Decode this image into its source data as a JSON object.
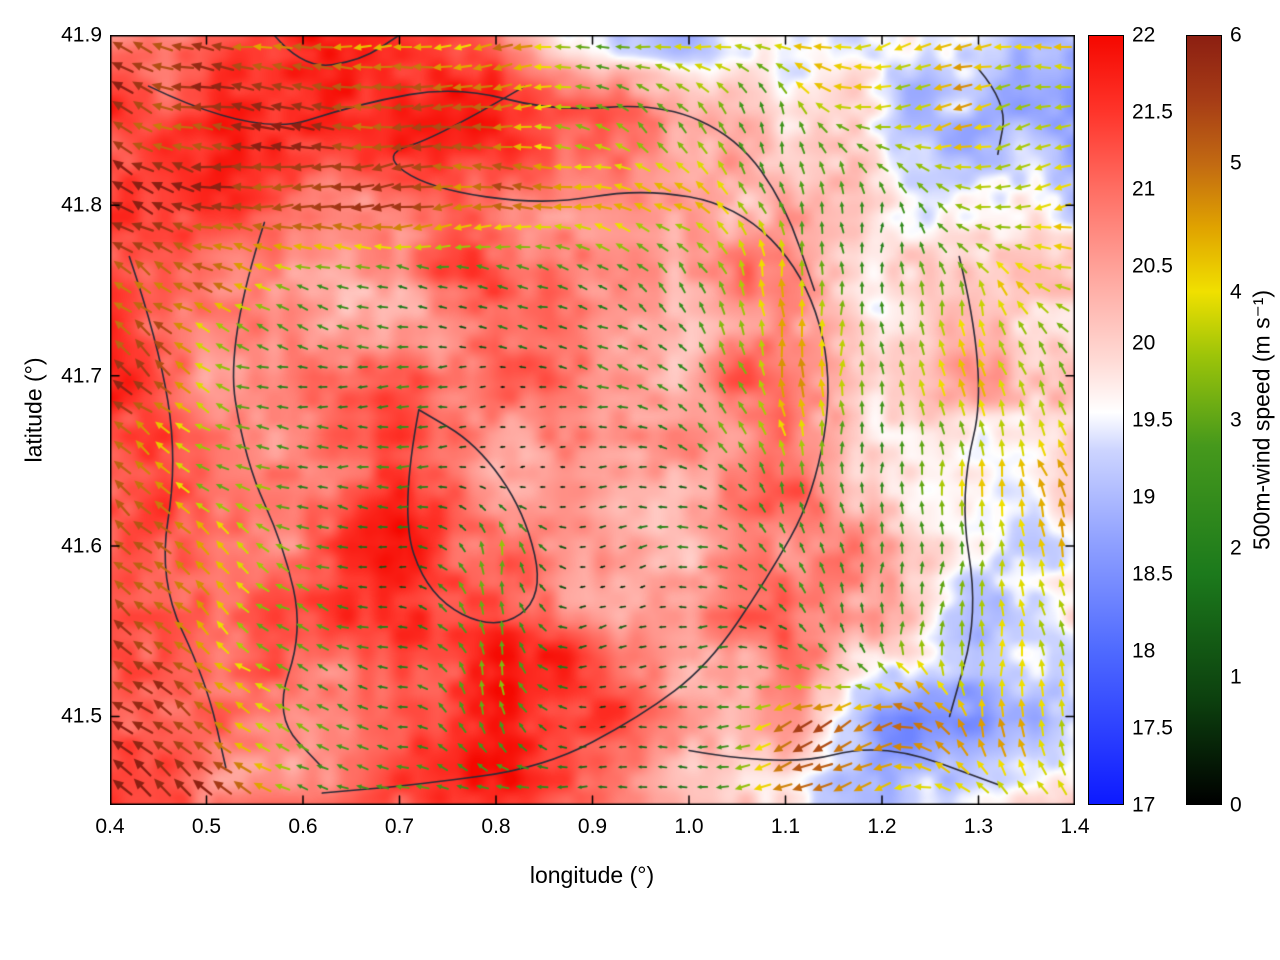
{
  "figure": {
    "background": "#ffffff"
  },
  "axes": {
    "xlabel": "longitude (°)",
    "ylabel": "latitude (°)",
    "xlim": [
      0.4,
      1.4
    ],
    "ylim": [
      41.448,
      41.9
    ],
    "x_ticks": [
      {
        "value": 0.4,
        "label": "0.4"
      },
      {
        "value": 0.5,
        "label": "0.5"
      },
      {
        "value": 0.6,
        "label": "0.6"
      },
      {
        "value": 0.7,
        "label": "0.7"
      },
      {
        "value": 0.8,
        "label": "0.8"
      },
      {
        "value": 0.9,
        "label": "0.9"
      },
      {
        "value": 1.0,
        "label": "1.0"
      },
      {
        "value": 1.1,
        "label": "1.1"
      },
      {
        "value": 1.2,
        "label": "1.2"
      },
      {
        "value": 1.3,
        "label": "1.3"
      },
      {
        "value": 1.4,
        "label": "1.4"
      }
    ],
    "y_ticks": [
      {
        "value": 41.5,
        "label": "41.5"
      },
      {
        "value": 41.6,
        "label": "41.6"
      },
      {
        "value": 41.7,
        "label": "41.7"
      },
      {
        "value": 41.8,
        "label": "41.8"
      },
      {
        "value": 41.9,
        "label": "41.9"
      }
    ]
  },
  "colorbars": [
    {
      "name": "temperature",
      "label": "",
      "min": 17,
      "max": 22,
      "ticks": [
        {
          "value": 17,
          "label": "17"
        },
        {
          "value": 17.5,
          "label": "17.5"
        },
        {
          "value": 18,
          "label": "18"
        },
        {
          "value": 18.5,
          "label": "18.5"
        },
        {
          "value": 19,
          "label": "19"
        },
        {
          "value": 19.5,
          "label": "19.5"
        },
        {
          "value": 20,
          "label": "20"
        },
        {
          "value": 20.5,
          "label": "20.5"
        },
        {
          "value": 21,
          "label": "21"
        },
        {
          "value": 21.5,
          "label": "21.5"
        },
        {
          "value": 22,
          "label": "22"
        }
      ],
      "stops": [
        [
          17,
          "#0d1aff"
        ],
        [
          18,
          "#4f6aff"
        ],
        [
          18.7,
          "#8fa0ff"
        ],
        [
          19.3,
          "#ccd4ff"
        ],
        [
          19.55,
          "#ffffff"
        ],
        [
          19.9,
          "#ffd9d4"
        ],
        [
          20.4,
          "#ffaaa2"
        ],
        [
          21,
          "#ff6e63"
        ],
        [
          21.5,
          "#ff352b"
        ],
        [
          22,
          "#f50800"
        ]
      ]
    },
    {
      "name": "wind-speed",
      "label": "500m-wind speed (m s⁻¹)",
      "min": 0,
      "max": 6,
      "ticks": [
        {
          "value": 0,
          "label": "0"
        },
        {
          "value": 1,
          "label": "1"
        },
        {
          "value": 2,
          "label": "2"
        },
        {
          "value": 3,
          "label": "3"
        },
        {
          "value": 4,
          "label": "4"
        },
        {
          "value": 5,
          "label": "5"
        },
        {
          "value": 6,
          "label": "6"
        }
      ],
      "stops": [
        [
          0,
          "#000000"
        ],
        [
          0.8,
          "#0c3f0e"
        ],
        [
          1.8,
          "#1c7a1c"
        ],
        [
          2.8,
          "#46991c"
        ],
        [
          3.5,
          "#9cc409"
        ],
        [
          4.0,
          "#f0e000"
        ],
        [
          4.5,
          "#e0a300"
        ],
        [
          5.0,
          "#c26a12"
        ],
        [
          5.5,
          "#a63c16"
        ],
        [
          6,
          "#8c1f12"
        ]
      ]
    }
  ],
  "chart_data": {
    "type": "heatmap",
    "overlays": {
      "vector_field": true,
      "contours": true
    },
    "lon": [
      0.4,
      0.5,
      0.6,
      0.7,
      0.8,
      0.9,
      1.0,
      1.1,
      1.2,
      1.3,
      1.4
    ],
    "lat": [
      41.9,
      41.85,
      41.8,
      41.75,
      41.7,
      41.65,
      41.6,
      41.55,
      41.5,
      41.45
    ],
    "temperature_c": [
      [
        21,
        21,
        21.5,
        21.5,
        21,
        19.5,
        19,
        19.5,
        19.5,
        19,
        19
      ],
      [
        21.5,
        21.5,
        21.5,
        21.5,
        21.5,
        21,
        20.5,
        20,
        19.5,
        19,
        19
      ],
      [
        21.5,
        21.5,
        21,
        21,
        21,
        20.5,
        20.5,
        20,
        20,
        19.5,
        19.5
      ],
      [
        21.5,
        21,
        20.5,
        20.5,
        21.5,
        20.5,
        20.5,
        21,
        19.5,
        20,
        20
      ],
      [
        21.5,
        20.5,
        21,
        21,
        21,
        20.5,
        20.5,
        21,
        19.5,
        20.5,
        20
      ],
      [
        21.5,
        21,
        20.5,
        21,
        20.5,
        20.5,
        20.5,
        21,
        20,
        19.5,
        20
      ],
      [
        21.5,
        21,
        21,
        22,
        21,
        20.5,
        20.5,
        21,
        20.5,
        19.5,
        19.5
      ],
      [
        21.5,
        21,
        21,
        21.5,
        22,
        21,
        20.5,
        21,
        20.5,
        19,
        19.5
      ],
      [
        21.5,
        21,
        20.5,
        21,
        22,
        21.5,
        20.5,
        20.5,
        18.5,
        18.5,
        19
      ],
      [
        21.5,
        21,
        21,
        21,
        21.5,
        21,
        20.5,
        20,
        19,
        19.5,
        20
      ]
    ],
    "wind_speed_ms": [
      [
        5.5,
        5,
        4.5,
        4.5,
        4.5,
        3,
        4,
        4,
        4,
        4,
        4
      ],
      [
        5.5,
        5.5,
        5.5,
        5,
        5.5,
        3,
        2.5,
        3,
        4,
        4,
        4
      ],
      [
        6,
        5.5,
        5.5,
        5.5,
        5,
        4,
        4,
        3,
        2.5,
        4,
        4
      ],
      [
        5.5,
        4.5,
        3,
        2,
        2,
        2,
        2,
        5,
        2.5,
        3.5,
        4
      ],
      [
        5.5,
        4,
        2,
        2,
        0.5,
        2,
        2,
        5,
        2.5,
        4,
        3
      ],
      [
        5.5,
        3.5,
        2,
        3,
        0.5,
        1,
        2,
        3.5,
        2.5,
        4,
        4
      ],
      [
        5.5,
        4,
        3,
        1,
        3.5,
        0.5,
        2,
        2,
        2.5,
        3,
        4
      ],
      [
        5.5,
        5,
        2.5,
        2,
        3.5,
        1,
        1,
        2,
        2.5,
        3.5,
        4
      ],
      [
        6,
        5.5,
        3.5,
        2,
        3,
        1,
        2,
        5,
        5,
        4,
        4
      ],
      [
        6,
        5.5,
        2.5,
        2.5,
        2,
        2,
        2.5,
        4.5,
        4,
        4,
        4.5
      ]
    ],
    "wind_dir_deg": [
      [
        150,
        170,
        180,
        180,
        190,
        180,
        180,
        190,
        200,
        190,
        180
      ],
      [
        150,
        175,
        180,
        180,
        185,
        160,
        120,
        100,
        190,
        200,
        190
      ],
      [
        150,
        175,
        180,
        185,
        180,
        170,
        150,
        100,
        90,
        180,
        190
      ],
      [
        140,
        150,
        160,
        170,
        170,
        160,
        120,
        90,
        90,
        100,
        170
      ],
      [
        140,
        150,
        170,
        180,
        180,
        170,
        140,
        90,
        90,
        100,
        120
      ],
      [
        140,
        150,
        170,
        180,
        190,
        180,
        160,
        100,
        90,
        100,
        110
      ],
      [
        140,
        140,
        160,
        180,
        90,
        200,
        180,
        120,
        90,
        90,
        100
      ],
      [
        140,
        140,
        150,
        170,
        90,
        200,
        190,
        150,
        90,
        90,
        100
      ],
      [
        140,
        145,
        150,
        170,
        100,
        190,
        180,
        200,
        210,
        100,
        90
      ],
      [
        140,
        145,
        160,
        180,
        180,
        180,
        190,
        200,
        200,
        150,
        120
      ]
    ],
    "contours_lonlat": [
      [
        [
          0.83,
          41.87
        ],
        [
          0.74,
          41.84
        ],
        [
          0.68,
          41.83
        ],
        [
          0.73,
          41.81
        ],
        [
          0.85,
          41.8
        ],
        [
          0.95,
          41.81
        ],
        [
          1.05,
          41.8
        ],
        [
          1.12,
          41.76
        ],
        [
          1.15,
          41.7
        ],
        [
          1.13,
          41.63
        ],
        [
          1.08,
          41.58
        ],
        [
          1.02,
          41.53
        ],
        [
          0.95,
          41.5
        ],
        [
          0.85,
          41.47
        ],
        [
          0.72,
          41.46
        ],
        [
          0.62,
          41.455
        ]
      ],
      [
        [
          0.42,
          41.77
        ],
        [
          0.45,
          41.72
        ],
        [
          0.47,
          41.65
        ],
        [
          0.45,
          41.58
        ],
        [
          0.5,
          41.52
        ],
        [
          0.52,
          41.47
        ]
      ],
      [
        [
          0.56,
          41.79
        ],
        [
          0.52,
          41.72
        ],
        [
          0.54,
          41.65
        ],
        [
          0.58,
          41.6
        ],
        [
          0.6,
          41.55
        ],
        [
          0.57,
          41.5
        ],
        [
          0.62,
          41.47
        ]
      ],
      [
        [
          0.72,
          41.68
        ],
        [
          0.7,
          41.62
        ],
        [
          0.73,
          41.57
        ],
        [
          0.8,
          41.55
        ],
        [
          0.85,
          41.57
        ],
        [
          0.83,
          41.62
        ],
        [
          0.78,
          41.66
        ],
        [
          0.72,
          41.68
        ]
      ],
      [
        [
          0.44,
          41.87
        ],
        [
          0.55,
          41.84
        ],
        [
          0.66,
          41.86
        ],
        [
          0.76,
          41.87
        ],
        [
          0.86,
          41.855
        ],
        [
          0.97,
          41.86
        ],
        [
          1.05,
          41.84
        ],
        [
          1.1,
          41.8
        ],
        [
          1.13,
          41.75
        ]
      ],
      [
        [
          1.28,
          41.77
        ],
        [
          1.31,
          41.7
        ],
        [
          1.28,
          41.63
        ],
        [
          1.3,
          41.56
        ],
        [
          1.27,
          41.5
        ]
      ],
      [
        [
          1.0,
          41.48
        ],
        [
          1.1,
          41.47
        ],
        [
          1.2,
          41.485
        ],
        [
          1.32,
          41.46
        ]
      ],
      [
        [
          0.57,
          41.9
        ],
        [
          0.6,
          41.88
        ],
        [
          0.66,
          41.885
        ],
        [
          0.7,
          41.9
        ]
      ],
      [
        [
          1.3,
          41.88
        ],
        [
          1.33,
          41.86
        ],
        [
          1.32,
          41.83
        ]
      ]
    ]
  }
}
